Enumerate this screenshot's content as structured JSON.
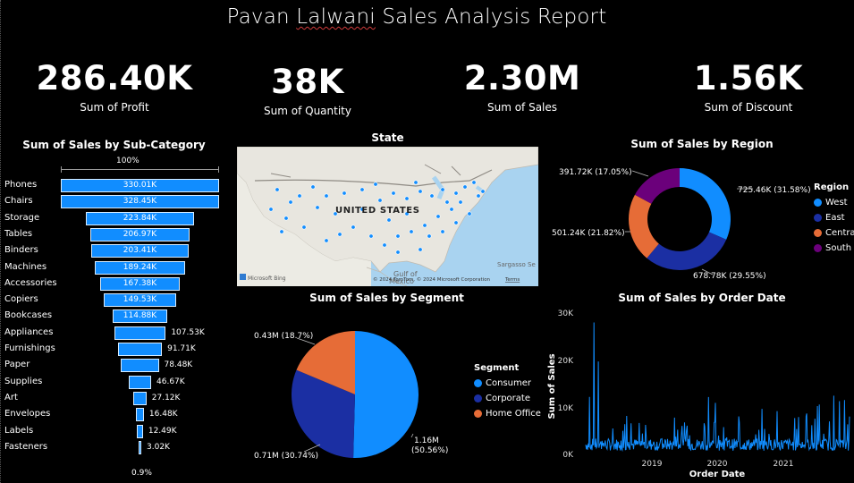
{
  "report": {
    "title_first": "Pavan ",
    "title_squig": "Lalwani",
    "title_rest": " Sales Analysis Report"
  },
  "kpis": [
    {
      "value": "286.40K",
      "label": "Sum of Profit"
    },
    {
      "value": "38K",
      "label": "Sum of Quantity"
    },
    {
      "value": "2.30M",
      "label": "Sum of Sales"
    },
    {
      "value": "1.56K",
      "label": "Sum of Discount"
    }
  ],
  "funnel": {
    "title": "Sum of Sales by Sub-Category",
    "top_pct": "100%",
    "bottom_pct": "0.9%",
    "color": "#118dff",
    "categories": [
      "Phones",
      "Chairs",
      "Storage",
      "Tables",
      "Binders",
      "Machines",
      "Accessories",
      "Copiers",
      "Bookcases",
      "Appliances",
      "Furnishings",
      "Paper",
      "Supplies",
      "Art",
      "Envelopes",
      "Labels",
      "Fasteners"
    ],
    "labels": [
      "330.01K",
      "328.45K",
      "223.84K",
      "206.97K",
      "203.41K",
      "189.24K",
      "167.38K",
      "149.53K",
      "114.88K",
      "107.53K",
      "91.71K",
      "78.48K",
      "46.67K",
      "27.12K",
      "16.48K",
      "12.49K",
      "3.02K"
    ],
    "values": [
      330.01,
      328.45,
      223.84,
      206.97,
      203.41,
      189.24,
      167.38,
      149.53,
      114.88,
      107.53,
      91.71,
      78.48,
      46.67,
      27.12,
      16.48,
      12.49,
      3.02
    ]
  },
  "map": {
    "title": "State",
    "country_label": "UNITED STATES",
    "gulf_label": "Gulf of",
    "mexico_label": "Mexico",
    "sargasso_label": "Sargasso Se",
    "attribution": "© 2024 TomTom, © 2024 Microsoft Corporation",
    "terms": "Terms",
    "bing_label": "Microsoft Bing"
  },
  "donut": {
    "title": "Sum of Sales by Region",
    "legend_title": "Region",
    "segments": [
      {
        "name": "West",
        "value": 725.46,
        "label": "725.46K (31.58%)",
        "color": "#118dff"
      },
      {
        "name": "East",
        "value": 678.78,
        "label": "678.78K (29.55%)",
        "color": "#1b2fa3"
      },
      {
        "name": "Central",
        "value": 501.24,
        "label": "501.24K (21.82%)",
        "color": "#e66c37"
      },
      {
        "name": "South",
        "value": 391.72,
        "label": "391.72K (17.05%)",
        "color": "#6b007b"
      }
    ]
  },
  "pie": {
    "title": "Sum of Sales by Segment",
    "legend_title": "Segment",
    "segments": [
      {
        "name": "Consumer",
        "value": 1.16,
        "label_line1": "1.16M",
        "label_line2": "(50.56%)",
        "color": "#118dff"
      },
      {
        "name": "Corporate",
        "value": 0.71,
        "label": "0.71M (30.74%)",
        "color": "#1b2fa3"
      },
      {
        "name": "Home Office",
        "value": 0.43,
        "label": "0.43M (18.7%)",
        "color": "#e66c37"
      }
    ]
  },
  "line": {
    "title": "Sum of Sales by Order Date",
    "ylabel": "Sum of Sales",
    "xlabel": "Order Date",
    "yticks": [
      "30K",
      "20K",
      "10K",
      "0K"
    ],
    "xticks": [
      "2019",
      "2020",
      "2021"
    ],
    "color": "#118dff"
  },
  "chart_data": [
    {
      "type": "bar",
      "title": "Sum of Sales by Sub-Category",
      "categories": [
        "Phones",
        "Chairs",
        "Storage",
        "Tables",
        "Binders",
        "Machines",
        "Accessories",
        "Copiers",
        "Bookcases",
        "Appliances",
        "Furnishings",
        "Paper",
        "Supplies",
        "Art",
        "Envelopes",
        "Labels",
        "Fasteners"
      ],
      "values": [
        330010,
        328450,
        223840,
        206970,
        203410,
        189240,
        167380,
        149530,
        114880,
        107530,
        91710,
        78480,
        46670,
        27120,
        16480,
        12490,
        3020
      ]
    },
    {
      "type": "pie",
      "title": "Sum of Sales by Region",
      "categories": [
        "West",
        "East",
        "Central",
        "South"
      ],
      "values": [
        725460,
        678780,
        501240,
        391720
      ]
    },
    {
      "type": "pie",
      "title": "Sum of Sales by Segment",
      "categories": [
        "Consumer",
        "Corporate",
        "Home Office"
      ],
      "values": [
        1160000,
        710000,
        430000
      ]
    },
    {
      "type": "line",
      "title": "Sum of Sales by Order Date",
      "xlabel": "Order Date",
      "ylabel": "Sum of Sales",
      "ylim": [
        0,
        30000
      ],
      "x": [
        "2018-03",
        "2018-06",
        "2018-09",
        "2018-12",
        "2019-03",
        "2019-06",
        "2019-09",
        "2019-12",
        "2020-03",
        "2020-06",
        "2020-09",
        "2020-12",
        "2021-03",
        "2021-06",
        "2021-09",
        "2021-12"
      ],
      "values": [
        28000,
        9000,
        12000,
        7000,
        10000,
        9500,
        8500,
        14000,
        11000,
        10500,
        14000,
        13000,
        12000,
        10000,
        15000,
        16000
      ]
    }
  ]
}
